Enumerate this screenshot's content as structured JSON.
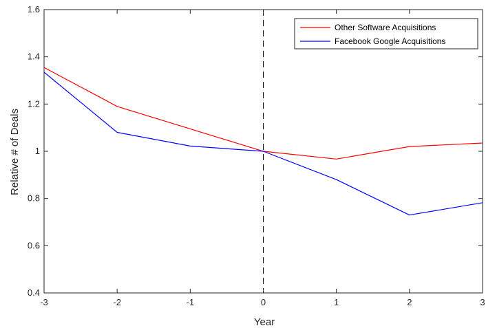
{
  "chart_data": {
    "type": "line",
    "title": "",
    "xlabel": "Year",
    "ylabel": "Relative # of Deals",
    "xlim": [
      -3,
      3
    ],
    "ylim": [
      0.4,
      1.6
    ],
    "x": [
      -3,
      -2,
      -1,
      0,
      1,
      2,
      3
    ],
    "xticks": [
      "-3",
      "-2",
      "-1",
      "0",
      "1",
      "2",
      "3"
    ],
    "yticks": [
      "0.4",
      "0.6",
      "0.8",
      "1",
      "1.2",
      "1.4",
      "1.6"
    ],
    "grid": false,
    "legend_position": "top-right",
    "reference_line": {
      "x": 0,
      "style": "dashed",
      "color": "#000000"
    },
    "series": [
      {
        "name": "Other Software Acquisitions",
        "color": "#ff0000",
        "values": [
          1.355,
          1.19,
          1.095,
          1.0,
          0.967,
          1.02,
          1.035
        ]
      },
      {
        "name": "Facebook Google Acquisitions",
        "color": "#0000ff",
        "values": [
          1.335,
          1.08,
          1.022,
          1.0,
          0.88,
          0.73,
          0.782
        ]
      }
    ]
  }
}
